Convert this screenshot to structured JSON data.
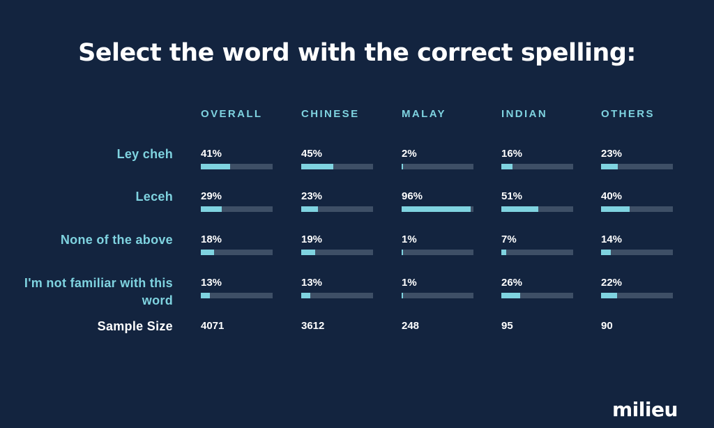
{
  "chart_data": {
    "type": "table",
    "title": "Select the word with the correct spelling:",
    "columns": [
      "OVERALL",
      "CHINESE",
      "MALAY",
      "INDIAN",
      "OTHERS"
    ],
    "rows": [
      {
        "label": "Ley cheh",
        "values": [
          41,
          45,
          2,
          16,
          23
        ],
        "labels": [
          "41%",
          "45%",
          "2%",
          "16%",
          "23%"
        ]
      },
      {
        "label": "Leceh",
        "values": [
          29,
          23,
          96,
          51,
          40
        ],
        "labels": [
          "29%",
          "23%",
          "96%",
          "51%",
          "40%"
        ]
      },
      {
        "label": "None of the above",
        "values": [
          18,
          19,
          1,
          7,
          14
        ],
        "labels": [
          "18%",
          "19%",
          "1%",
          "7%",
          "14%"
        ]
      },
      {
        "label": "I'm not familiar with this word",
        "values": [
          13,
          13,
          1,
          26,
          22
        ],
        "labels": [
          "13%",
          "13%",
          "1%",
          "26%",
          "22%"
        ]
      }
    ],
    "sample_size_label": "Sample Size",
    "sample_sizes": [
      "4071",
      "3612",
      "248",
      "95",
      "90"
    ],
    "bar_max": 100,
    "colors": {
      "background": "#13243f",
      "bar_fill": "#7fd3e0",
      "bar_track": "#3e4f66",
      "text": "#ffffff",
      "accent_text": "#7fd3e0"
    }
  },
  "brand": {
    "logo_text": "milieu"
  }
}
